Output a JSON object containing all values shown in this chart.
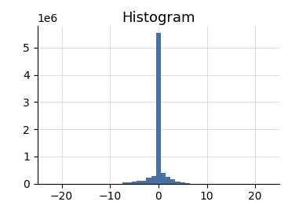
{
  "title": "Histogram",
  "bar_color": "#4472a8",
  "xlim": [
    -25,
    25
  ],
  "ylim": [
    0,
    5800000
  ],
  "yticks": [
    0,
    1000000,
    2000000,
    3000000,
    4000000,
    5000000
  ],
  "xticks": [
    -20,
    -10,
    0,
    10,
    20
  ],
  "grid": true,
  "bin_centers": [
    -7,
    -6,
    -5,
    -4,
    -3,
    -2,
    -1,
    0,
    1,
    2,
    3,
    4,
    5,
    6
  ],
  "bin_counts": [
    50000,
    60000,
    70000,
    90000,
    100000,
    230000,
    280000,
    5550000,
    380000,
    240000,
    150000,
    80000,
    45000,
    20000
  ],
  "bin_width": 1.0,
  "title_fontsize": 13,
  "tick_fontsize": 10,
  "background_color": "#ffffff"
}
